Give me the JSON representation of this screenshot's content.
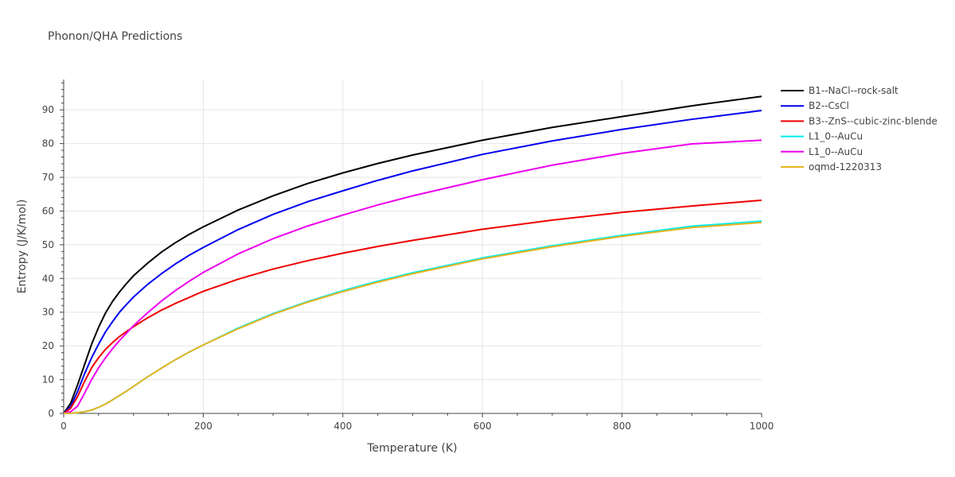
{
  "chart_data": {
    "type": "line",
    "title": "Phonon/QHA Predictions",
    "xlabel": "Temperature (K)",
    "ylabel": "Entropy (J/K/mol)",
    "xlim": [
      0,
      1000
    ],
    "ylim": [
      0,
      99
    ],
    "xticks": [
      "0",
      "200",
      "400",
      "600",
      "800",
      "1000"
    ],
    "yticks": [
      "0",
      "10",
      "20",
      "30",
      "40",
      "50",
      "60",
      "70",
      "80",
      "90"
    ],
    "grid": true,
    "legend_position": "top-right",
    "x": [
      0,
      10,
      20,
      30,
      40,
      50,
      60,
      70,
      80,
      90,
      100,
      120,
      140,
      160,
      180,
      200,
      250,
      300,
      350,
      400,
      450,
      500,
      600,
      700,
      800,
      900,
      1000
    ],
    "series": [
      {
        "name": "B1--NaCl--rock-salt",
        "color": "#000000",
        "values": [
          0,
          3,
          8.5,
          14.5,
          20.5,
          25.5,
          29.8,
          33.2,
          36,
          38.5,
          40.8,
          44.5,
          47.8,
          50.6,
          53.1,
          55.3,
          60.3,
          64.5,
          68.2,
          71.3,
          74.1,
          76.6,
          81,
          84.8,
          88,
          91.2,
          94
        ]
      },
      {
        "name": "B2--CsCl",
        "color": "#0000ee",
        "values": [
          0,
          2,
          6.5,
          11.8,
          16.5,
          20.5,
          24.2,
          27.2,
          30,
          32.3,
          34.5,
          38.2,
          41.4,
          44.3,
          46.9,
          49.2,
          54.5,
          59,
          62.8,
          66,
          69.1,
          71.9,
          76.8,
          80.8,
          84.2,
          87.2,
          89.8
        ]
      },
      {
        "name": "B3--ZnS--cubic-zinc-blende",
        "color": "#ee0000",
        "values": [
          0,
          1.5,
          5,
          9.5,
          13.5,
          16.5,
          19,
          21,
          22.8,
          24.3,
          25.7,
          28.3,
          30.6,
          32.6,
          34.4,
          36.2,
          39.8,
          42.8,
          45.3,
          47.5,
          49.5,
          51.3,
          54.6,
          57.3,
          59.6,
          61.5,
          63.2
        ]
      },
      {
        "name": "L1_0--AuCu",
        "color": "#00eeee",
        "values": [
          0,
          0.05,
          0.2,
          0.5,
          1,
          1.8,
          2.8,
          4,
          5.3,
          6.6,
          8,
          10.8,
          13.4,
          15.9,
          18.2,
          20.3,
          25.3,
          29.6,
          33.2,
          36.4,
          39.2,
          41.7,
          46.1,
          49.7,
          52.8,
          55.5,
          57
        ]
      },
      {
        "name": "L1_0--AuCu",
        "color": "#ee00ee",
        "values": [
          0,
          0.5,
          2.2,
          6,
          10,
          13.5,
          16.5,
          19.2,
          21.6,
          23.8,
          26,
          29.8,
          33.3,
          36.4,
          39.2,
          41.8,
          47.3,
          51.8,
          55.6,
          58.8,
          61.8,
          64.5,
          69.3,
          73.6,
          77.1,
          79.9,
          81
        ]
      },
      {
        "name": "oqmd-1220313",
        "color": "#e6b422",
        "values": [
          0,
          0.05,
          0.2,
          0.5,
          1,
          1.8,
          2.8,
          4,
          5.3,
          6.6,
          8,
          10.8,
          13.4,
          15.9,
          18.2,
          20.3,
          25.1,
          29.4,
          33,
          36.1,
          38.9,
          41.4,
          45.8,
          49.4,
          52.5,
          55.1,
          56.6
        ]
      }
    ]
  }
}
